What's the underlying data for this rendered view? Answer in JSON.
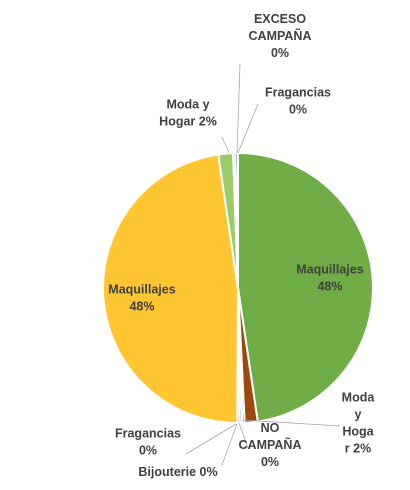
{
  "chart_data": {
    "type": "pie",
    "title": "",
    "legend": "none",
    "slices": [
      {
        "category": "Maquillajes",
        "value_label": "48%",
        "value": 48.9,
        "color": "#70ad47",
        "label_lines": [
          "Maquillajes",
          "48%"
        ]
      },
      {
        "category": "Moda y Hogar",
        "value_label": "2%",
        "value": 1.6,
        "color": "#9e480e",
        "label_lines": [
          "Moda",
          "y",
          "Hoga",
          "r 2%"
        ]
      },
      {
        "category": "NO CAMPAÑA",
        "value_label": "0%",
        "value": 0.3,
        "color": "#4472c4",
        "label_lines": [
          "NO",
          "CAMPAÑA",
          "0%"
        ]
      },
      {
        "category": "Bijouterie",
        "value_label": "0%",
        "value": 0.3,
        "color": "#5b9bd5",
        "label_lines": [
          "Bijouterie 0%"
        ]
      },
      {
        "category": "Fragancias",
        "value_label": "0%",
        "value": 0.3,
        "color": "#ed7d31",
        "label_lines": [
          "Fragancias",
          "0%"
        ]
      },
      {
        "category": "Maquillajes",
        "value_label": "48%",
        "value": 48.8,
        "color": "#ffc632",
        "label_lines": [
          "Maquillajes",
          "48%"
        ]
      },
      {
        "category": "Moda y Hogar",
        "value_label": "2%",
        "value": 1.8,
        "color": "#9bcb6b",
        "label_lines": [
          "Moda y",
          "Hogar 2%"
        ]
      },
      {
        "category": "EXCESO CAMPAÑA",
        "value_label": "0%",
        "value": 0.3,
        "color": "#a5a5a5",
        "label_lines": [
          "EXCESO",
          "CAMPAÑA",
          "0%"
        ]
      },
      {
        "category": "Fragancias",
        "value_label": "0%",
        "value": 0.3,
        "color": "#264478",
        "label_lines": [
          "Fragancias",
          "0%"
        ]
      }
    ]
  }
}
